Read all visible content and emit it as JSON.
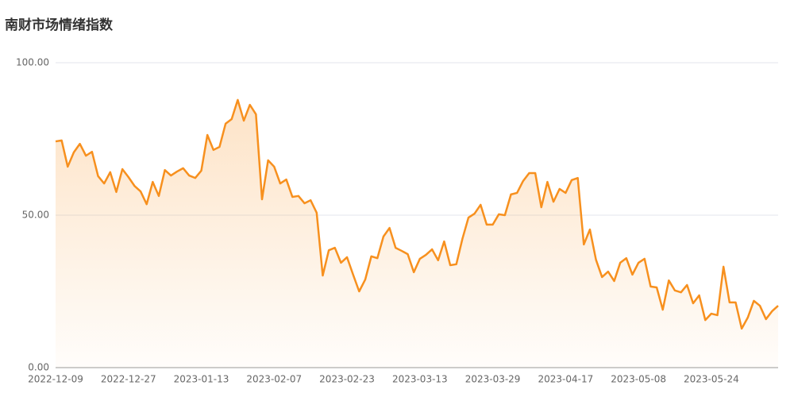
{
  "chart_data": {
    "type": "line",
    "title": "南财市场情绪指数",
    "categories": [
      "2022-12-09",
      null,
      null,
      null,
      null,
      null,
      null,
      null,
      null,
      null,
      null,
      null,
      "2022-12-27",
      null,
      null,
      null,
      null,
      null,
      null,
      null,
      null,
      null,
      null,
      null,
      "2023-01-13",
      null,
      null,
      null,
      null,
      null,
      null,
      null,
      null,
      null,
      null,
      null,
      "2023-02-07",
      null,
      null,
      null,
      null,
      null,
      null,
      null,
      null,
      null,
      null,
      null,
      "2023-02-23",
      null,
      null,
      null,
      null,
      null,
      null,
      null,
      null,
      null,
      null,
      null,
      "2023-03-13",
      null,
      null,
      null,
      null,
      null,
      null,
      null,
      null,
      null,
      null,
      null,
      "2023-03-29",
      null,
      null,
      null,
      null,
      null,
      null,
      null,
      null,
      null,
      null,
      null,
      "2023-04-17",
      null,
      null,
      null,
      null,
      null,
      null,
      null,
      null,
      null,
      null,
      null,
      "2023-05-08",
      null,
      null,
      null,
      null,
      null,
      null,
      null,
      null,
      null,
      null,
      null,
      "2023-05-24",
      null,
      null,
      null,
      null,
      null,
      null,
      null,
      null,
      null,
      null,
      null
    ],
    "values": [
      74.2,
      74.5,
      65.9,
      70.6,
      73.4,
      69.5,
      70.8,
      62.8,
      60.4,
      64.1,
      57.6,
      65.1,
      62.5,
      59.6,
      57.8,
      53.6,
      60.9,
      56.3,
      64.8,
      63.0,
      64.3,
      65.4,
      63.0,
      62.2,
      64.6,
      76.3,
      71.4,
      72.4,
      80.0,
      81.5,
      87.8,
      81.0,
      86.2,
      83.1,
      55.2,
      68.0,
      65.9,
      60.4,
      61.7,
      56.0,
      56.3,
      53.9,
      54.9,
      50.8,
      30.2,
      38.5,
      39.3,
      34.4,
      36.2,
      30.5,
      25.0,
      28.9,
      36.5,
      35.9,
      43.0,
      45.8,
      39.3,
      38.3,
      37.2,
      31.3,
      35.7,
      37.0,
      38.8,
      35.2,
      41.4,
      33.6,
      33.9,
      42.2,
      49.2,
      50.5,
      53.4,
      46.9,
      46.9,
      50.3,
      50.0,
      56.8,
      57.3,
      61.2,
      63.8,
      63.8,
      52.6,
      60.9,
      54.4,
      58.6,
      57.3,
      61.5,
      62.2,
      40.4,
      45.3,
      35.4,
      29.7,
      31.5,
      28.4,
      34.4,
      35.9,
      30.5,
      34.4,
      35.7,
      26.6,
      26.3,
      19.0,
      28.6,
      25.3,
      24.7,
      27.1,
      21.1,
      23.7,
      15.6,
      17.7,
      17.2,
      33.1,
      21.4,
      21.4,
      12.8,
      16.4,
      21.9,
      20.3,
      15.9,
      18.5,
      20.3
    ],
    "color": "#f7901e",
    "ylim": [
      0,
      100
    ],
    "yticks": [
      {
        "value": 0,
        "label": "0.00"
      },
      {
        "value": 50,
        "label": "50.00"
      },
      {
        "value": 100,
        "label": "100.00"
      }
    ],
    "grid": true
  }
}
